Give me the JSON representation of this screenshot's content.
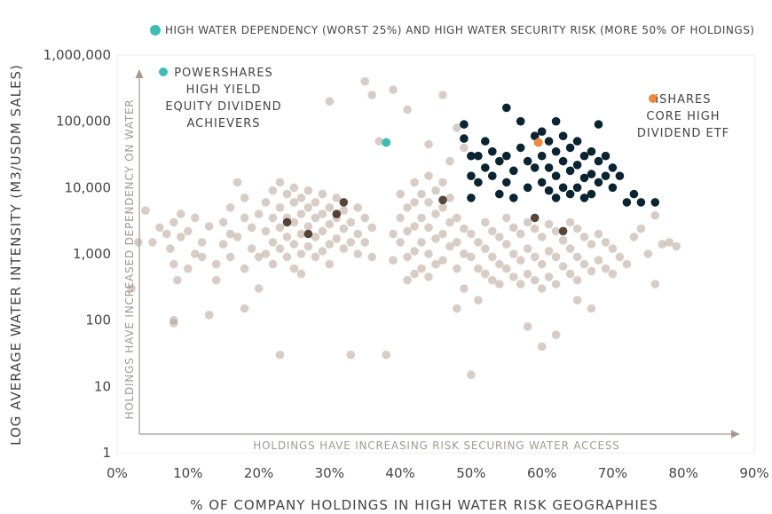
{
  "chart_data": {
    "type": "scatter",
    "title": "",
    "xlabel": "% OF COMPANY HOLDINGS IN HIGH WATER RISK GEOGRAPHIES",
    "ylabel": "LOG AVERAGE WATER INTENSITY (M3/USDM SALES)",
    "xlim": [
      0,
      90
    ],
    "ylim": [
      1,
      1000000
    ],
    "y_scale": "log",
    "x_tick_labels": [
      "0%",
      "10%",
      "20%",
      "30%",
      "40%",
      "50%",
      "60%",
      "70%",
      "80%",
      "90%"
    ],
    "y_tick_labels": [
      "1",
      "10",
      "100",
      "1,000",
      "10,000",
      "100,000",
      "1,000,000"
    ],
    "legend": {
      "label": "HIGH WATER DEPENDENCY (WORST 25%) AND HIGH WATER SECURITY RISK (MORE 50% OF HOLDINGS)",
      "placement": "top",
      "color": "#3dbdb5"
    },
    "arrow_labels": {
      "x": "HOLDINGS HAVE INCREASING RISK SECURING WATER ACCESS",
      "y": "HOLDINGS HAVE INCREASED DEPENDENCY ON WATER"
    },
    "annotations": [
      {
        "lines": [
          "POWERSHARES",
          "HIGH YIELD",
          "EQUITY DIVIDEND",
          "ACHIEVERS"
        ],
        "x": 38,
        "y": 48000,
        "color": "#3dbdb5"
      },
      {
        "lines": [
          "iSHARES",
          "CORE HIGH",
          "DIVIDEND ETF"
        ],
        "x": 59.5,
        "y": 48000,
        "color": "#ee8a3c"
      }
    ],
    "series": [
      {
        "role": "holdings",
        "color": "#b09c8c",
        "points": [
          [
            5,
            1500
          ],
          [
            6,
            2500
          ],
          [
            7,
            2000
          ],
          [
            7.5,
            1200
          ],
          [
            8,
            3000
          ],
          [
            8,
            700
          ],
          [
            8.5,
            400
          ],
          [
            9,
            1800
          ],
          [
            9,
            4000
          ],
          [
            10,
            2200
          ],
          [
            10,
            600
          ],
          [
            11,
            3500
          ],
          [
            11,
            1000
          ],
          [
            12,
            1500
          ],
          [
            12,
            900
          ],
          [
            13,
            2600
          ],
          [
            14,
            700
          ],
          [
            14,
            400
          ],
          [
            15,
            3000
          ],
          [
            15,
            1400
          ],
          [
            16,
            5000
          ],
          [
            16,
            2000
          ],
          [
            16,
            900
          ],
          [
            17,
            12000
          ],
          [
            17,
            1800
          ],
          [
            18,
            7000
          ],
          [
            18,
            3500
          ],
          [
            18,
            600
          ],
          [
            19,
            2500
          ],
          [
            19,
            1200
          ],
          [
            20,
            4000
          ],
          [
            20,
            900
          ],
          [
            20,
            300
          ],
          [
            21,
            6000
          ],
          [
            21,
            2200
          ],
          [
            21,
            1000
          ],
          [
            22,
            9000
          ],
          [
            22,
            3500
          ],
          [
            22,
            1500
          ],
          [
            22,
            700
          ],
          [
            23,
            12000
          ],
          [
            23,
            5000
          ],
          [
            23,
            2500
          ],
          [
            23,
            1200
          ],
          [
            24,
            8000
          ],
          [
            24,
            3500
          ],
          [
            24,
            1800
          ],
          [
            24,
            900
          ],
          [
            25,
            10000
          ],
          [
            25,
            6000
          ],
          [
            25,
            3000
          ],
          [
            25,
            1400
          ],
          [
            25,
            600
          ],
          [
            26,
            7000
          ],
          [
            26,
            4000
          ],
          [
            26,
            2000
          ],
          [
            26,
            1000
          ],
          [
            26,
            500
          ],
          [
            27,
            9000
          ],
          [
            27,
            5000
          ],
          [
            27,
            2600
          ],
          [
            27,
            1300
          ],
          [
            28,
            6000
          ],
          [
            28,
            3500
          ],
          [
            28,
            1800
          ],
          [
            28,
            900
          ],
          [
            29,
            8000
          ],
          [
            29,
            4000
          ],
          [
            29,
            2200
          ],
          [
            29,
            1100
          ],
          [
            30,
            5000
          ],
          [
            30,
            2800
          ],
          [
            30,
            1400
          ],
          [
            30,
            700
          ],
          [
            31,
            7000
          ],
          [
            31,
            3500
          ],
          [
            31,
            1700
          ],
          [
            32,
            4500
          ],
          [
            32,
            2400
          ],
          [
            32,
            1200
          ],
          [
            33,
            3000
          ],
          [
            33,
            1500
          ],
          [
            34,
            5000
          ],
          [
            34,
            2000
          ],
          [
            34,
            1000
          ],
          [
            35,
            3500
          ],
          [
            35,
            1500
          ],
          [
            36,
            2500
          ],
          [
            36,
            900
          ],
          [
            2,
            300
          ],
          [
            3,
            1500
          ],
          [
            4,
            4500
          ],
          [
            8,
            100
          ],
          [
            8,
            90
          ],
          [
            13,
            120
          ],
          [
            18,
            150
          ],
          [
            23,
            30
          ],
          [
            33,
            30
          ],
          [
            35,
            400000
          ],
          [
            36,
            250000
          ],
          [
            37,
            50000
          ],
          [
            38,
            30
          ],
          [
            39,
            2000
          ],
          [
            39,
            800
          ],
          [
            40,
            8000
          ],
          [
            40,
            3500
          ],
          [
            40,
            1500
          ],
          [
            41,
            5000
          ],
          [
            41,
            2200
          ],
          [
            41,
            900
          ],
          [
            41,
            400
          ],
          [
            42,
            12000
          ],
          [
            42,
            6000
          ],
          [
            42,
            2600
          ],
          [
            42,
            1100
          ],
          [
            42,
            500
          ],
          [
            43,
            8000
          ],
          [
            43,
            3500
          ],
          [
            43,
            1500
          ],
          [
            43,
            600
          ],
          [
            44,
            15000
          ],
          [
            44,
            6000
          ],
          [
            44,
            2500
          ],
          [
            44,
            1000
          ],
          [
            44,
            450
          ],
          [
            45,
            9000
          ],
          [
            45,
            4000
          ],
          [
            45,
            1700
          ],
          [
            45,
            700
          ],
          [
            46,
            250000
          ],
          [
            46,
            12000
          ],
          [
            46,
            5000
          ],
          [
            46,
            2000
          ],
          [
            46,
            800
          ],
          [
            47,
            7000
          ],
          [
            47,
            3000
          ],
          [
            47,
            1300
          ],
          [
            48,
            3500
          ],
          [
            48,
            1500
          ],
          [
            48,
            600
          ],
          [
            48,
            150
          ],
          [
            49,
            2400
          ],
          [
            49,
            1000
          ],
          [
            49,
            300
          ],
          [
            50,
            2000
          ],
          [
            50,
            900
          ],
          [
            50,
            15
          ],
          [
            51,
            1500
          ],
          [
            51,
            600
          ],
          [
            51,
            200
          ],
          [
            52,
            3000
          ],
          [
            52,
            1200
          ],
          [
            52,
            500
          ],
          [
            53,
            2200
          ],
          [
            53,
            900
          ],
          [
            53,
            400
          ],
          [
            54,
            1800
          ],
          [
            54,
            700
          ],
          [
            54,
            350
          ],
          [
            55,
            3500
          ],
          [
            55,
            1400
          ],
          [
            55,
            600
          ],
          [
            56,
            2500
          ],
          [
            56,
            1000
          ],
          [
            56,
            450
          ],
          [
            57,
            2000
          ],
          [
            57,
            800
          ],
          [
            57,
            350
          ],
          [
            58,
            3000
          ],
          [
            58,
            1200
          ],
          [
            58,
            500
          ],
          [
            59,
            2400
          ],
          [
            59,
            900
          ],
          [
            59,
            400
          ],
          [
            60,
            1800
          ],
          [
            60,
            700
          ],
          [
            60,
            300
          ],
          [
            61,
            2800
          ],
          [
            61,
            1100
          ],
          [
            61,
            450
          ],
          [
            62,
            2200
          ],
          [
            62,
            900
          ],
          [
            62,
            350
          ],
          [
            63,
            1600
          ],
          [
            63,
            650
          ],
          [
            64,
            3000
          ],
          [
            64,
            1200
          ],
          [
            64,
            500
          ],
          [
            65,
            2400
          ],
          [
            65,
            900
          ],
          [
            65,
            400
          ],
          [
            66,
            1800
          ],
          [
            66,
            700
          ],
          [
            67,
            1400
          ],
          [
            67,
            550
          ],
          [
            68,
            2000
          ],
          [
            68,
            800
          ],
          [
            69,
            1500
          ],
          [
            69,
            600
          ],
          [
            70,
            1200
          ],
          [
            70,
            500
          ],
          [
            71,
            900
          ],
          [
            72,
            700
          ],
          [
            73,
            1800
          ],
          [
            74,
            2400
          ],
          [
            75,
            1000
          ],
          [
            76,
            350
          ],
          [
            77,
            1400
          ],
          [
            78,
            1500
          ],
          [
            79,
            1300
          ],
          [
            30,
            200000
          ],
          [
            39,
            300000
          ],
          [
            41,
            150000
          ],
          [
            44,
            45000
          ],
          [
            47,
            25000
          ],
          [
            48,
            80000
          ],
          [
            49,
            40000
          ],
          [
            58,
            80
          ],
          [
            60,
            40
          ],
          [
            62,
            60
          ],
          [
            65,
            200
          ],
          [
            67,
            150
          ],
          [
            76,
            3800
          ]
        ]
      },
      {
        "role": "holdings overlapping",
        "color": "#3b2418",
        "points": [
          [
            31,
            4000
          ],
          [
            32,
            6000
          ],
          [
            24,
            3000
          ],
          [
            27,
            2000
          ],
          [
            46,
            6500
          ],
          [
            59,
            3500
          ],
          [
            63,
            2200
          ]
        ]
      },
      {
        "role": "high dependency and high security risk",
        "color": "#0b2432",
        "points": [
          [
            49,
            90000
          ],
          [
            49,
            55000
          ],
          [
            50,
            30000
          ],
          [
            50,
            15000
          ],
          [
            50,
            7000
          ],
          [
            51,
            30000
          ],
          [
            51,
            12000
          ],
          [
            52,
            50000
          ],
          [
            52,
            20000
          ],
          [
            53,
            35000
          ],
          [
            53,
            15000
          ],
          [
            54,
            25000
          ],
          [
            54,
            8000
          ],
          [
            55,
            160000
          ],
          [
            55,
            30000
          ],
          [
            55,
            12000
          ],
          [
            56,
            18000
          ],
          [
            56,
            7000
          ],
          [
            57,
            100000
          ],
          [
            57,
            40000
          ],
          [
            58,
            25000
          ],
          [
            58,
            10000
          ],
          [
            59,
            60000
          ],
          [
            59,
            20000
          ],
          [
            60,
            70000
          ],
          [
            60,
            30000
          ],
          [
            60,
            12000
          ],
          [
            61,
            50000
          ],
          [
            61,
            20000
          ],
          [
            61,
            9000
          ],
          [
            62,
            100000
          ],
          [
            62,
            35000
          ],
          [
            62,
            15000
          ],
          [
            62,
            7000
          ],
          [
            63,
            60000
          ],
          [
            63,
            25000
          ],
          [
            63,
            10000
          ],
          [
            64,
            40000
          ],
          [
            64,
            18000
          ],
          [
            64,
            8000
          ],
          [
            65,
            50000
          ],
          [
            65,
            22000
          ],
          [
            65,
            10000
          ],
          [
            66,
            30000
          ],
          [
            66,
            14000
          ],
          [
            66,
            7000
          ],
          [
            67,
            35000
          ],
          [
            67,
            16000
          ],
          [
            67,
            8000
          ],
          [
            68,
            90000
          ],
          [
            68,
            25000
          ],
          [
            68,
            12000
          ],
          [
            69,
            30000
          ],
          [
            69,
            15000
          ],
          [
            70,
            20000
          ],
          [
            70,
            10000
          ],
          [
            71,
            15000
          ],
          [
            72,
            6000
          ],
          [
            73,
            8000
          ],
          [
            74,
            6000
          ],
          [
            76,
            6000
          ]
        ]
      },
      {
        "role": "POWERSHARES HIGH YIELD EQUITY DIVIDEND ACHIEVERS",
        "color": "#3dbdb5",
        "points": [
          [
            38,
            48000
          ]
        ]
      },
      {
        "role": "iSHARES CORE HIGH DIVIDEND ETF",
        "color": "#ee8a3c",
        "points": [
          [
            59.5,
            48000
          ]
        ]
      }
    ]
  }
}
